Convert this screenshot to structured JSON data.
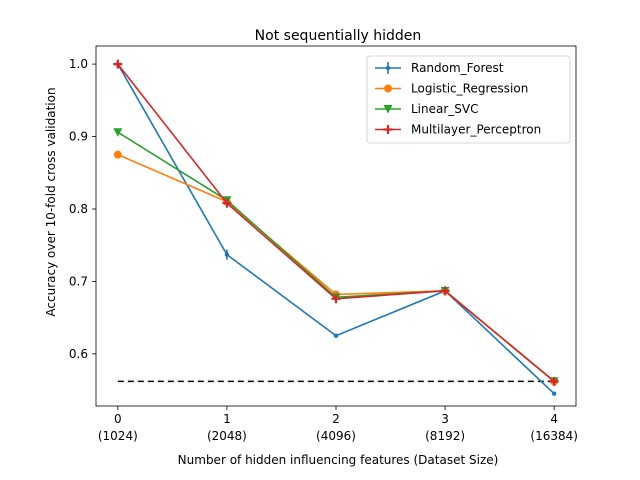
{
  "chart_data": {
    "type": "line",
    "title": "Not sequentially hidden",
    "xlabel": "Number of hidden influencing features  (Dataset Size)",
    "ylabel": "Accuracy over 10-fold cross validation",
    "x": [
      0,
      1,
      2,
      3,
      4
    ],
    "xtick_labels": [
      "0",
      "1",
      "2",
      "3",
      "4"
    ],
    "xtick_sublabels": [
      "(1024)",
      "(2048)",
      "(4096)",
      "(8192)",
      "(16384)"
    ],
    "xlim": [
      -0.2,
      4.2
    ],
    "ylim": [
      0.528,
      1.025
    ],
    "yticks": [
      0.6,
      0.7,
      0.8,
      0.9,
      1.0
    ],
    "ytick_labels": [
      "0.6",
      "0.7",
      "0.8",
      "0.9",
      "1.0"
    ],
    "grid": false,
    "legend_position": "top-right",
    "series": [
      {
        "name": "Random_Forest",
        "values": [
          1.0,
          0.737,
          0.625,
          0.687,
          0.545
        ],
        "color": "#1f77b4",
        "marker": "point",
        "yerr": [
          0,
          0.007,
          0.002,
          0.003,
          0.002
        ]
      },
      {
        "name": "Logistic_Regression",
        "values": [
          0.875,
          0.81,
          0.682,
          0.687,
          0.562
        ],
        "color": "#ff7f0e",
        "marker": "circle",
        "yerr": [
          0,
          0.004,
          0.002,
          0.002,
          0.002
        ]
      },
      {
        "name": "Linear_SVC",
        "values": [
          0.906,
          0.812,
          0.678,
          0.687,
          0.562
        ],
        "color": "#2ca02c",
        "marker": "triangle-down",
        "yerr": [
          0,
          0.004,
          0.002,
          0.002,
          0.002
        ]
      },
      {
        "name": "Multilayer_Perceptron",
        "values": [
          1.0,
          0.808,
          0.676,
          0.687,
          0.562
        ],
        "color": "#d62728",
        "marker": "plus",
        "yerr": [
          0.004,
          0.006,
          0.005,
          0.004,
          0.004
        ]
      }
    ],
    "reference_line": {
      "value": 0.562,
      "color": "#000000",
      "style": "dashed"
    }
  }
}
